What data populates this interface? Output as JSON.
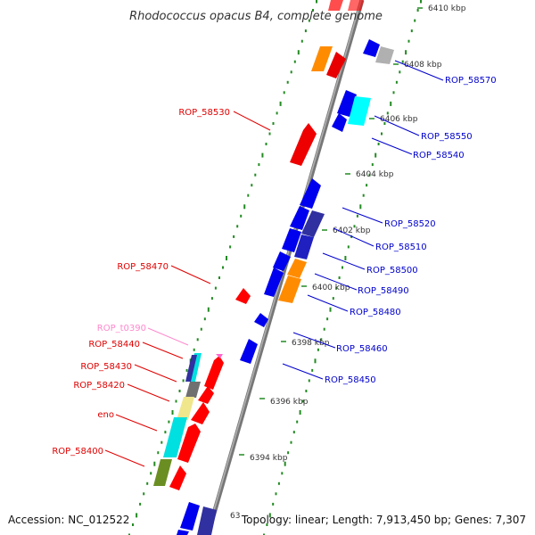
{
  "title": "Rhodococcus opacus B4, complete genome",
  "footer": {
    "accession": "Accession: NC_012522",
    "topology": "Topology: linear; Length: 7,913,450 bp; Genes: 7,307",
    "partial_label": "63"
  },
  "kbp_marks": [
    "6410 kbp",
    "6408 kbp",
    "6406 kbp",
    "6404 kbp",
    "6402 kbp",
    "6400 kbp",
    "6398 kbp",
    "6396 kbp",
    "6394 kbp"
  ],
  "left_labels": [
    {
      "text": "ROP_58530",
      "color": "#e00000"
    },
    {
      "text": "ROP_58470",
      "color": "#e00000"
    },
    {
      "text": "ROP_t0390",
      "color": "#ff88cc"
    },
    {
      "text": "ROP_58440",
      "color": "#e00000"
    },
    {
      "text": "ROP_58430",
      "color": "#e00000"
    },
    {
      "text": "ROP_58420",
      "color": "#e00000"
    },
    {
      "text": "eno",
      "color": "#e00000"
    },
    {
      "text": "ROP_58400",
      "color": "#e00000"
    }
  ],
  "right_labels": [
    {
      "text": "ROP_58570",
      "color": "#0000cc"
    },
    {
      "text": "ROP_58550",
      "color": "#0000cc"
    },
    {
      "text": "ROP_58540",
      "color": "#0000cc"
    },
    {
      "text": "ROP_58520",
      "color": "#0000cc"
    },
    {
      "text": "ROP_58510",
      "color": "#0000cc"
    },
    {
      "text": "ROP_58500",
      "color": "#0000cc"
    },
    {
      "text": "ROP_58490",
      "color": "#0000cc"
    },
    {
      "text": "ROP_58480",
      "color": "#0000cc"
    },
    {
      "text": "ROP_58460",
      "color": "#0000cc"
    },
    {
      "text": "ROP_58450",
      "color": "#0000cc"
    }
  ],
  "colors": {
    "forward": "#ff0000",
    "reverse": "#0000ee",
    "orange": "#ff8c00",
    "cyan": "#00e0e0",
    "navy": "#3030a0",
    "gray": "#808080",
    "olive": "#6b8e23",
    "khaki": "#f0e68c",
    "pink": "#ff66cc",
    "axis": "#888888",
    "dots": "#228b22"
  }
}
